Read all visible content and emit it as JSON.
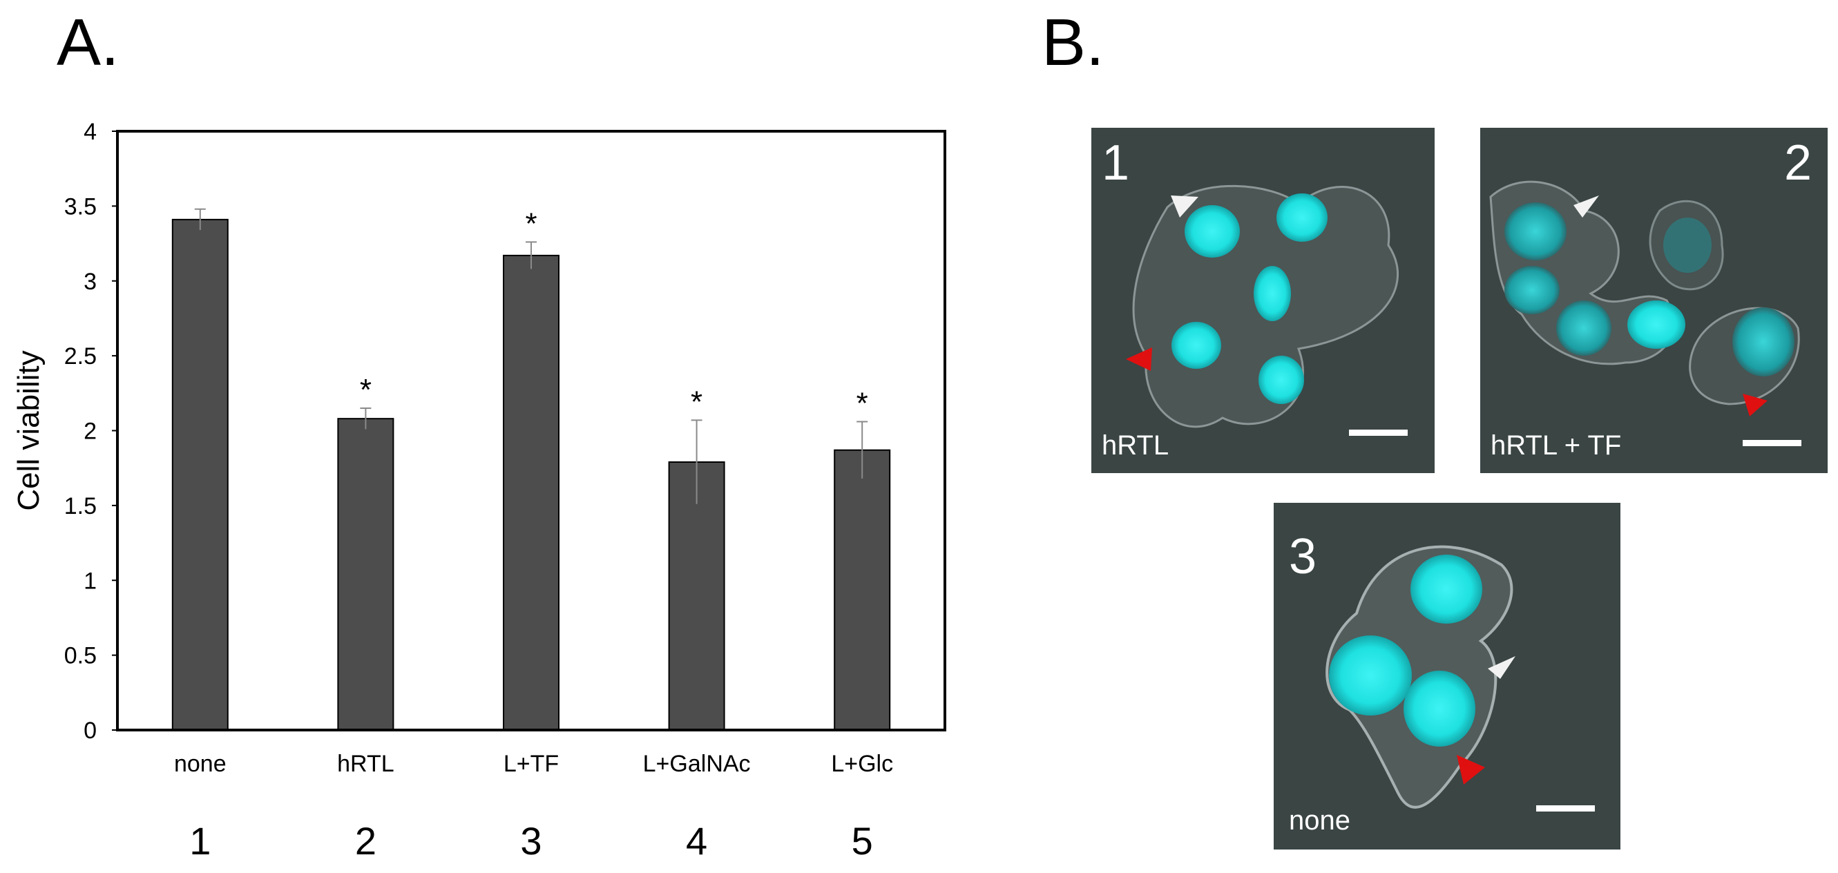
{
  "panels": {
    "a": {
      "label": "A."
    },
    "b": {
      "label": "B."
    }
  },
  "chart_data": {
    "type": "bar",
    "ylabel": "Cell viability",
    "xlabel": "",
    "ylim": [
      0,
      4
    ],
    "yticks": [
      "0",
      "0.5",
      "1",
      "1.5",
      "2",
      "2.5",
      "3",
      "3.5",
      "4"
    ],
    "categories": [
      "none",
      "hRTL",
      "L+TF",
      "L+GalNAc",
      "L+Glc"
    ],
    "lane_numbers": [
      "1",
      "2",
      "3",
      "4",
      "5"
    ],
    "values": [
      3.41,
      2.08,
      3.17,
      1.79,
      1.87
    ],
    "errors": [
      0.07,
      0.07,
      0.09,
      0.28,
      0.19
    ],
    "significance": [
      "",
      "*",
      "*",
      "*",
      "*"
    ],
    "bar_color": "#4d4d4d",
    "grid": false
  },
  "micrographs": [
    {
      "number": "1",
      "condition": "hRTL",
      "background": "#3a4544",
      "nucleus_color": "#1fe3e3"
    },
    {
      "number": "2",
      "condition": "hRTL + TF",
      "background": "#3a4544",
      "nucleus_color": "#1fe3e3"
    },
    {
      "number": "3",
      "condition": "none",
      "background": "#3a4544",
      "nucleus_color": "#1fe3e3"
    }
  ],
  "arrowheads": {
    "white": "#f2f2f2",
    "red": "#e01010"
  }
}
